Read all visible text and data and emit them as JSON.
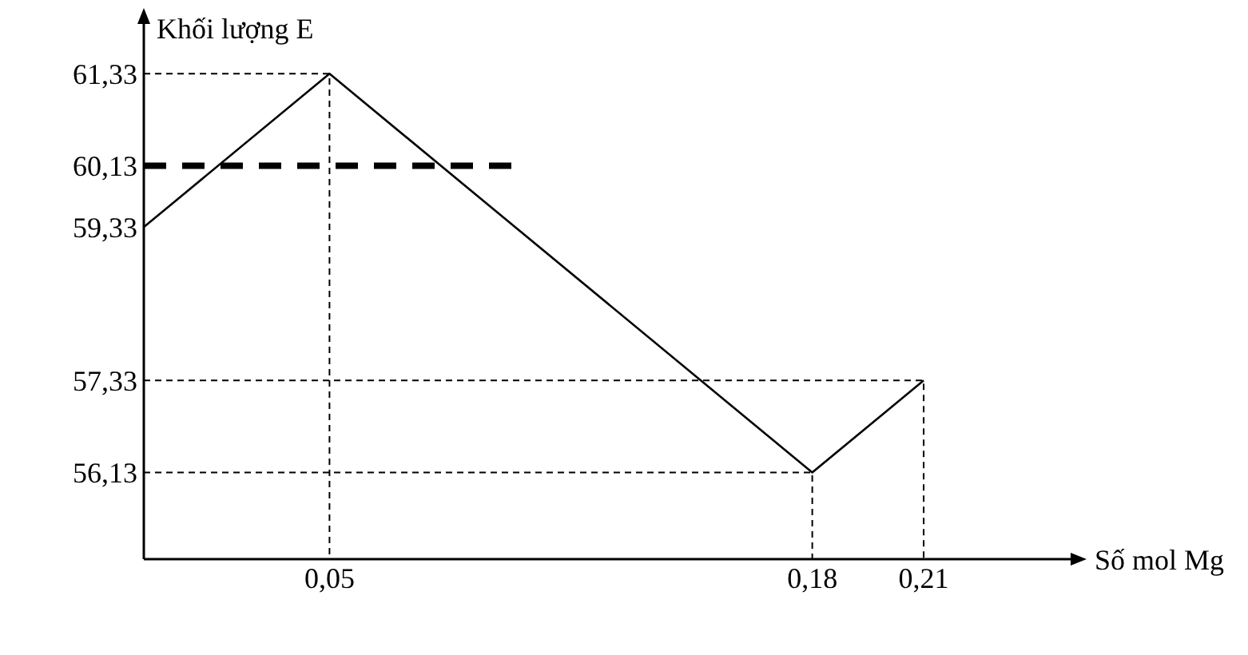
{
  "chart_data": {
    "type": "line",
    "xlabel": "Số mol Mg",
    "ylabel": "Khối lượng E",
    "xlim": [
      0,
      0.25
    ],
    "ylim": [
      55,
      62
    ],
    "xticks": [
      {
        "value": 0.05,
        "label": "0,05"
      },
      {
        "value": 0.18,
        "label": "0,18"
      },
      {
        "value": 0.21,
        "label": "0,21"
      }
    ],
    "yticks": [
      {
        "value": 56.13,
        "label": "56,13"
      },
      {
        "value": 57.33,
        "label": "57,33"
      },
      {
        "value": 59.33,
        "label": "59,33"
      },
      {
        "value": 60.13,
        "label": "60,13"
      },
      {
        "value": 61.33,
        "label": "61,33"
      }
    ],
    "grid": false,
    "marker": "none",
    "series": [
      {
        "color": "#000000",
        "x": [
          0,
          0.05,
          0.18,
          0.21
        ],
        "values": [
          59.33,
          61.33,
          56.13,
          57.33
        ],
        "line_style": "solid"
      },
      {
        "color": "#000000",
        "x": [
          0,
          0.1
        ],
        "values": [
          60.13,
          60.13
        ],
        "line_style": "dashed"
      },
      {
        "color": "#000000",
        "x": [
          0,
          0.05,
          0.05
        ],
        "values": [
          61.33,
          61.33,
          55
        ],
        "line_style": "dotted"
      },
      {
        "color": "#000000",
        "x": [
          0,
          0.18,
          0.18
        ],
        "values": [
          56.13,
          56.13,
          55
        ],
        "line_style": "dotted"
      },
      {
        "color": "#000000",
        "x": [
          0,
          0.21,
          0.21
        ],
        "values": [
          57.33,
          57.33,
          55
        ],
        "line_style": "dotted"
      }
    ]
  }
}
